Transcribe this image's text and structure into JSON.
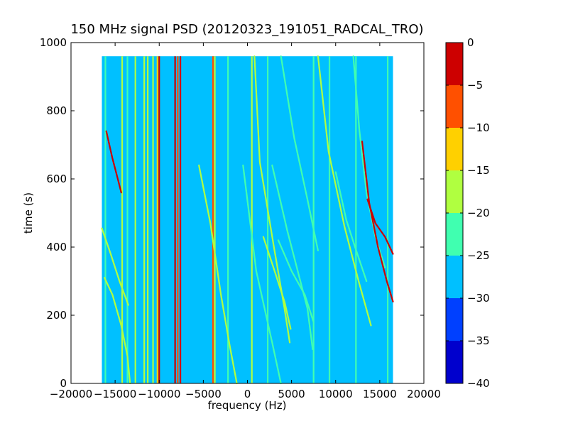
{
  "chart_data": {
    "type": "heatmap",
    "title": "150 MHz signal PSD (20120323_191051_RADCAL_TRO)",
    "xlabel": "frequency (Hz)",
    "ylabel": "time (s)",
    "xlim": [
      -20000,
      20000
    ],
    "ylim": [
      0,
      1000
    ],
    "xticks": [
      -20000,
      -15000,
      -10000,
      -5000,
      0,
      5000,
      10000,
      15000,
      20000
    ],
    "xtick_labels": [
      "−20000",
      "−15000",
      "−10000",
      "−5000",
      "0",
      "5000",
      "10000",
      "15000",
      "20000"
    ],
    "yticks": [
      0,
      200,
      400,
      600,
      800,
      1000
    ],
    "ytick_labels": [
      "0",
      "200",
      "400",
      "600",
      "800",
      "1000"
    ],
    "data_extent": {
      "x": [
        -16500,
        16500
      ],
      "y": [
        0,
        960
      ]
    },
    "background_level": -27.5,
    "colorbar": {
      "levels": [
        -40,
        -35,
        -30,
        -25,
        -20,
        -15,
        -10,
        -5,
        0
      ],
      "tick_labels": [
        "−40",
        "−35",
        "−30",
        "−25",
        "−20",
        "−15",
        "−10",
        "−5",
        "0"
      ],
      "colors": [
        "#0000cd",
        "#0040ff",
        "#00c0ff",
        "#40ffb0",
        "#b0ff40",
        "#ffd000",
        "#ff5000",
        "#cd0000"
      ]
    },
    "vertical_lines": [
      {
        "x": -16100,
        "level": -22.5
      },
      {
        "x": -14200,
        "level": -17.5
      },
      {
        "x": -13600,
        "level": -22.5
      },
      {
        "x": -12700,
        "level": -17.5
      },
      {
        "x": -11700,
        "level": -17.5
      },
      {
        "x": -11300,
        "level": -17.5
      },
      {
        "x": -10700,
        "level": -17.5
      },
      {
        "x": -10200,
        "level": -12.5
      },
      {
        "x": -10000,
        "level": -2.5
      },
      {
        "x": -8200,
        "level": -2.5
      },
      {
        "x": -7900,
        "level": -7.5
      },
      {
        "x": -7600,
        "level": -2.5
      },
      {
        "x": -3900,
        "level": -7.5
      },
      {
        "x": -3700,
        "level": -17.5
      },
      {
        "x": -2200,
        "level": -22.5
      },
      {
        "x": 500,
        "level": -17.5
      },
      {
        "x": 2300,
        "level": -22.5
      },
      {
        "x": 7500,
        "level": -22.5
      },
      {
        "x": 9300,
        "level": -22.5
      },
      {
        "x": 12300,
        "level": -22.5
      },
      {
        "x": 15900,
        "level": -22.5
      }
    ],
    "curves": [
      {
        "level": -17.5,
        "points": [
          [
            -16500,
            455
          ],
          [
            -15500,
            380
          ],
          [
            -14500,
            300
          ],
          [
            -13500,
            230
          ]
        ]
      },
      {
        "level": -2.5,
        "points": [
          [
            -16000,
            740
          ],
          [
            -15300,
            660
          ],
          [
            -14700,
            600
          ],
          [
            -14300,
            560
          ]
        ]
      },
      {
        "level": -17.5,
        "points": [
          [
            -16200,
            310
          ],
          [
            -15300,
            260
          ],
          [
            -14300,
            170
          ],
          [
            -13600,
            80
          ],
          [
            -13300,
            0
          ]
        ]
      },
      {
        "level": -17.5,
        "points": [
          [
            -5500,
            640
          ],
          [
            -4200,
            470
          ],
          [
            -3000,
            260
          ],
          [
            -2000,
            110
          ],
          [
            -1200,
            0
          ]
        ]
      },
      {
        "level": -17.5,
        "points": [
          [
            800,
            960
          ],
          [
            1400,
            650
          ],
          [
            3000,
            400
          ],
          [
            4200,
            220
          ],
          [
            4800,
            120
          ]
        ]
      },
      {
        "level": -17.5,
        "points": [
          [
            1800,
            430
          ],
          [
            3200,
            320
          ],
          [
            4200,
            240
          ],
          [
            4900,
            160
          ]
        ]
      },
      {
        "level": -22.5,
        "points": [
          [
            2800,
            640
          ],
          [
            4500,
            450
          ],
          [
            5900,
            310
          ],
          [
            6800,
            220
          ],
          [
            7400,
            100
          ]
        ]
      },
      {
        "level": -22.5,
        "points": [
          [
            -500,
            640
          ],
          [
            1000,
            330
          ],
          [
            2800,
            120
          ],
          [
            3800,
            0
          ]
        ]
      },
      {
        "level": -17.5,
        "points": [
          [
            8000,
            960
          ],
          [
            9200,
            680
          ],
          [
            11000,
            460
          ],
          [
            12600,
            300
          ],
          [
            14000,
            170
          ]
        ]
      },
      {
        "level": -22.5,
        "points": [
          [
            12000,
            960
          ],
          [
            12700,
            740
          ],
          [
            13500,
            560
          ],
          [
            14500,
            430
          ],
          [
            15600,
            340
          ]
        ]
      },
      {
        "level": -2.5,
        "points": [
          [
            13000,
            710
          ],
          [
            13800,
            530
          ],
          [
            14800,
            400
          ],
          [
            15800,
            300
          ],
          [
            16500,
            240
          ]
        ]
      },
      {
        "level": -2.5,
        "points": [
          [
            13600,
            540
          ],
          [
            14500,
            470
          ],
          [
            15600,
            430
          ],
          [
            16500,
            380
          ]
        ]
      },
      {
        "level": -22.5,
        "points": [
          [
            3800,
            960
          ],
          [
            5300,
            720
          ],
          [
            6800,
            540
          ],
          [
            8000,
            390
          ]
        ]
      },
      {
        "level": -22.5,
        "points": [
          [
            10000,
            620
          ],
          [
            11200,
            480
          ],
          [
            12200,
            400
          ],
          [
            13500,
            300
          ]
        ]
      },
      {
        "level": -22.5,
        "points": [
          [
            3500,
            420
          ],
          [
            5000,
            330
          ],
          [
            6500,
            260
          ],
          [
            7500,
            180
          ]
        ]
      }
    ]
  }
}
